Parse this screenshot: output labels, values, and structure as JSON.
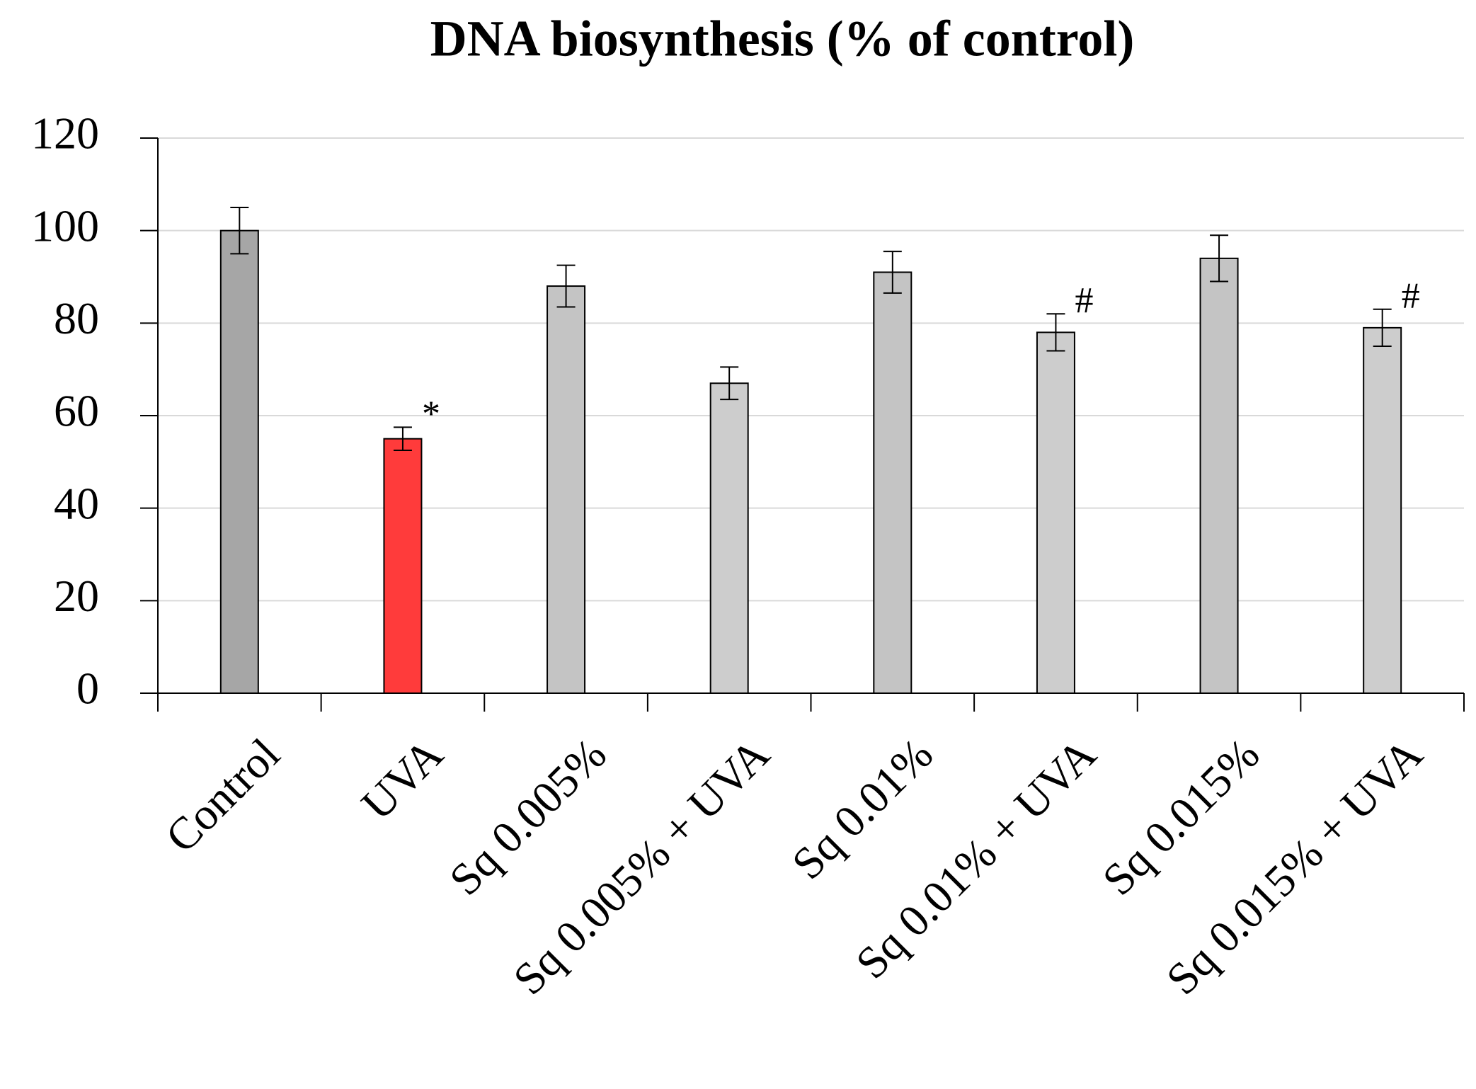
{
  "chart_data": {
    "type": "bar",
    "title": "DNA biosynthesis (% of control)",
    "categories": [
      "Control",
      "UVA",
      "Sq 0.005%",
      "Sq 0.005% + UVA",
      "Sq 0.01%",
      "Sq 0.01% + UVA",
      "Sq 0.015%",
      "Sq 0.015% + UVA"
    ],
    "values": [
      100,
      55,
      88,
      67,
      91,
      78,
      94,
      79
    ],
    "errors": [
      5,
      2.5,
      4.5,
      3.5,
      4.5,
      4,
      5,
      4
    ],
    "annotations": [
      null,
      "*",
      null,
      null,
      null,
      "#",
      null,
      "#"
    ],
    "colors": [
      "#a6a6a6",
      "#ff3b3b",
      "#c4c4c4",
      "#cdcdcd",
      "#c4c4c4",
      "#cdcdcd",
      "#c4c4c4",
      "#cdcdcd"
    ],
    "ylim": [
      0,
      120
    ],
    "yticks": [
      0,
      20,
      40,
      60,
      80,
      100,
      120
    ],
    "grid": true
  }
}
